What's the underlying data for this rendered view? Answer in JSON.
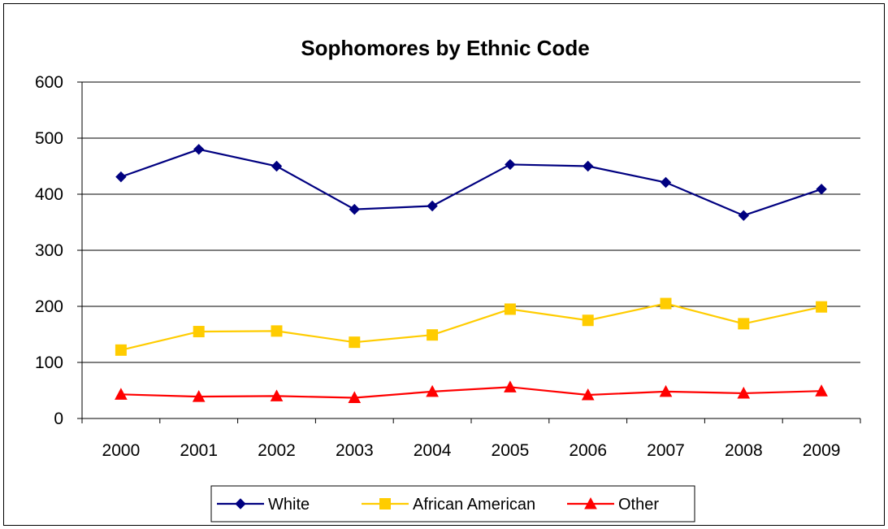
{
  "chart_data": {
    "type": "line",
    "title": "Sophomores by Ethnic Code",
    "xlabel": "",
    "ylabel": "",
    "categories": [
      "2000",
      "2001",
      "2002",
      "2003",
      "2004",
      "2005",
      "2006",
      "2007",
      "2008",
      "2009"
    ],
    "ylim": [
      0,
      600
    ],
    "yticks": [
      "0",
      "100",
      "200",
      "300",
      "400",
      "500",
      "600"
    ],
    "grid": true,
    "legend": "bottom",
    "series": [
      {
        "name": "White",
        "color": "#000080",
        "marker": "diamond",
        "values": [
          431,
          480,
          450,
          373,
          379,
          453,
          450,
          421,
          362,
          409
        ]
      },
      {
        "name": "African American",
        "color": "#ffcc00",
        "marker": "square",
        "values": [
          122,
          155,
          156,
          136,
          149,
          195,
          175,
          205,
          169,
          199
        ]
      },
      {
        "name": "Other",
        "color": "#ff0000",
        "marker": "triangle",
        "values": [
          43,
          39,
          40,
          37,
          48,
          56,
          42,
          48,
          45,
          49
        ]
      }
    ]
  }
}
